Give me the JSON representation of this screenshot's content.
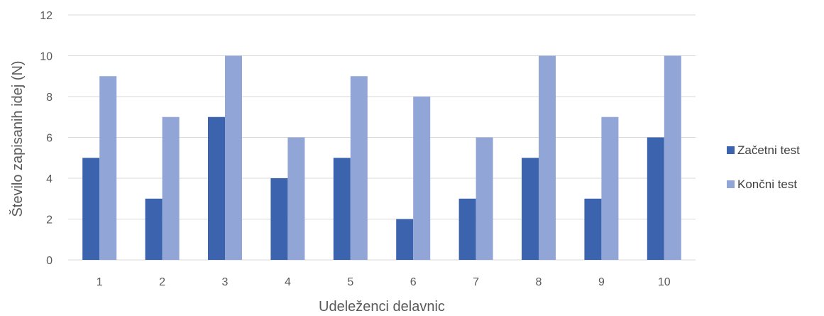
{
  "chart_data": {
    "type": "bar",
    "title": "",
    "xlabel": "Udeleženci delavnic",
    "ylabel": "Število zapisanih idej (N)",
    "categories": [
      "1",
      "2",
      "3",
      "4",
      "5",
      "6",
      "7",
      "8",
      "9",
      "10"
    ],
    "series": [
      {
        "name": "Začetni test",
        "color": "#3c63ad",
        "values": [
          5,
          3,
          7,
          4,
          5,
          2,
          3,
          5,
          3,
          6
        ]
      },
      {
        "name": "Končni test",
        "color": "#91a5d6",
        "values": [
          9,
          7,
          10,
          6,
          9,
          8,
          6,
          10,
          7,
          10
        ]
      }
    ],
    "ylim": [
      0,
      12
    ],
    "yticks": [
      "0",
      "2",
      "4",
      "6",
      "8",
      "10",
      "12"
    ],
    "grid": true,
    "grid_color": "#d9d9d9",
    "legend_position": "right"
  }
}
